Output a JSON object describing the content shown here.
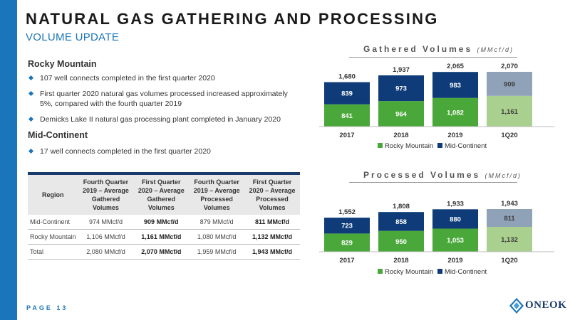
{
  "header": {
    "title": "NATURAL GAS GATHERING AND PROCESSING",
    "subtitle": "VOLUME UPDATE"
  },
  "sections": [
    {
      "heading": "Rocky Mountain",
      "bullets": [
        "107 well connects completed in the first quarter 2020",
        "First quarter 2020 natural gas volumes processed increased approximately 5%, compared with the fourth quarter 2019",
        "Demicks Lake II natural gas processing plant completed in January 2020"
      ]
    },
    {
      "heading": "Mid-Continent",
      "bullets": [
        "17 well connects completed in the first quarter 2020"
      ]
    }
  ],
  "table": {
    "headers": [
      "Region",
      "Fourth Quarter 2019 – Average Gathered Volumes",
      "First Quarter 2020 – Average Gathered Volumes",
      "Fourth Quarter 2019 – Average Processed Volumes",
      "First Quarter 2020 – Average Processed Volumes"
    ],
    "rows": [
      [
        "Mid-Continent",
        "974 MMcf/d",
        "909 MMcf/d",
        "879 MMcf/d",
        "811 MMcf/d"
      ],
      [
        "Rocky Mountain",
        "1,106 MMcf/d",
        "1,161 MMcf/d",
        "1,080 MMcf/d",
        "1,132 MMcf/d"
      ],
      [
        "Total",
        "2,080 MMcf/d",
        "2,070 MMcf/d",
        "1,959 MMcf/d",
        "1,943 MMcf/d"
      ]
    ]
  },
  "colors": {
    "accent": "#1b75bb",
    "rocky": "#4aa83a",
    "mid": "#0f3c78",
    "rocky_light": "#a9d08e",
    "mid_light": "#8fa2b8"
  },
  "chart_data": [
    {
      "type": "bar",
      "stacked": true,
      "title": "Gathered Volumes",
      "unit": "(MMcf/d)",
      "categories": [
        "2017",
        "2018",
        "2019",
        "1Q20"
      ],
      "series": [
        {
          "name": "Rocky Mountain",
          "values": [
            841,
            964,
            1082,
            1161
          ]
        },
        {
          "name": "Mid-Continent",
          "values": [
            839,
            973,
            983,
            909
          ]
        }
      ],
      "totals": [
        1680,
        1937,
        2065,
        2070
      ],
      "total_labels": [
        "1,680",
        "1,937",
        "2,065",
        "2,070"
      ],
      "value_labels": [
        [
          "841",
          "964",
          "1,082",
          "1,161"
        ],
        [
          "839",
          "973",
          "983",
          "909"
        ]
      ],
      "highlight_last": true,
      "legend": "bottom",
      "grid": false
    },
    {
      "type": "bar",
      "stacked": true,
      "title": "Processed Volumes",
      "unit": "(MMcf/d)",
      "categories": [
        "2017",
        "2018",
        "2019",
        "1Q20"
      ],
      "series": [
        {
          "name": "Rocky Mountain",
          "values": [
            829,
            950,
            1053,
            1132
          ]
        },
        {
          "name": "Mid-Continent",
          "values": [
            723,
            858,
            880,
            811
          ]
        }
      ],
      "totals": [
        1552,
        1808,
        1933,
        1943
      ],
      "total_labels": [
        "1,552",
        "1,808",
        "1,933",
        "1,943"
      ],
      "value_labels": [
        [
          "829",
          "950",
          "1,053",
          "1,132"
        ],
        [
          "723",
          "858",
          "880",
          "811"
        ]
      ],
      "highlight_last": true,
      "legend": "bottom",
      "grid": false
    }
  ],
  "footer": {
    "page": "PAGE 13",
    "logo_text": "ONEOK"
  }
}
